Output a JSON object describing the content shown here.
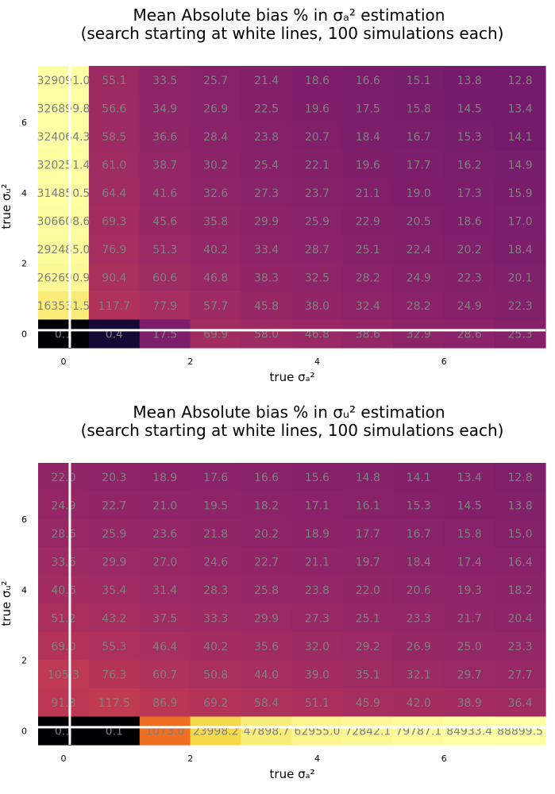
{
  "chart_data": [
    {
      "type": "heatmap",
      "title_line1": "Mean Absolute bias % in σₐ² estimation",
      "title_line2": "(search starting at white lines, 100 simulations each)",
      "xlabel": "true σₐ²",
      "ylabel": "true σᵤ²",
      "x_ticks": [
        "0",
        "2",
        "4",
        "6"
      ],
      "y_ticks": [
        "0",
        "2",
        "4",
        "6"
      ],
      "xlim": [
        -0.4,
        7.6
      ],
      "ylim": [
        -0.4,
        7.6
      ],
      "x_values": [
        0,
        1,
        2,
        3,
        4,
        5,
        6,
        7,
        8,
        9
      ],
      "y_values": [
        0,
        1,
        2,
        3,
        4,
        5,
        6,
        7,
        8,
        9
      ],
      "white_lines": {
        "x": 0.1,
        "y": 0.1
      },
      "colormap": "inferno",
      "grid": false,
      "rows_top_to_bottom": [
        [
          "329091.0",
          "55.1",
          "33.5",
          "25.7",
          "21.4",
          "18.6",
          "16.6",
          "15.1",
          "13.8",
          "12.8"
        ],
        [
          "326899.8",
          "56.6",
          "34.9",
          "26.9",
          "22.5",
          "19.6",
          "17.5",
          "15.8",
          "14.5",
          "13.4"
        ],
        [
          "324064.3",
          "58.5",
          "36.6",
          "28.4",
          "23.8",
          "20.7",
          "18.4",
          "16.7",
          "15.3",
          "14.1"
        ],
        [
          "320251.4",
          "61.0",
          "38.7",
          "30.2",
          "25.4",
          "22.1",
          "19.6",
          "17.7",
          "16.2",
          "14.9"
        ],
        [
          "314850.5",
          "64.4",
          "41.6",
          "32.6",
          "27.3",
          "23.7",
          "21.1",
          "19.0",
          "17.3",
          "15.9"
        ],
        [
          "306608.6",
          "69.3",
          "45.6",
          "35.8",
          "29.9",
          "25.9",
          "22.9",
          "20.5",
          "18.6",
          "17.0"
        ],
        [
          "292485.0",
          "76.9",
          "51.3",
          "40.2",
          "33.4",
          "28.7",
          "25.1",
          "22.4",
          "20.2",
          "18.4"
        ],
        [
          "262690.9",
          "90.4",
          "60.6",
          "46.8",
          "38.3",
          "32.5",
          "28.2",
          "24.9",
          "22.3",
          "20.1"
        ],
        [
          "163531.5",
          "117.7",
          "77.9",
          "57.7",
          "45.8",
          "38.0",
          "32.4",
          "28.2",
          "24.9",
          "22.3"
        ],
        [
          "0.1",
          "0.4",
          "17.5",
          "69.9",
          "58.0",
          "46.8",
          "38.6",
          "32.9",
          "28.6",
          "25.3"
        ]
      ]
    },
    {
      "type": "heatmap",
      "title_line1": "Mean Absolute bias % in σᵤ² estimation",
      "title_line2": "(search starting at white lines, 100 simulations each)",
      "xlabel": "true σₐ²",
      "ylabel": "true σᵤ²",
      "x_ticks": [
        "0",
        "2",
        "4",
        "6"
      ],
      "y_ticks": [
        "0",
        "2",
        "4",
        "6"
      ],
      "xlim": [
        -0.4,
        7.6
      ],
      "ylim": [
        -0.4,
        7.6
      ],
      "x_values": [
        0,
        1,
        2,
        3,
        4,
        5,
        6,
        7,
        8,
        9
      ],
      "y_values": [
        0,
        1,
        2,
        3,
        4,
        5,
        6,
        7,
        8,
        9
      ],
      "white_lines": {
        "x": 0.1,
        "y": 0.1
      },
      "colormap": "inferno",
      "grid": false,
      "rows_top_to_bottom": [
        [
          "22.0",
          "20.3",
          "18.9",
          "17.6",
          "16.6",
          "15.6",
          "14.8",
          "14.1",
          "13.4",
          "12.8"
        ],
        [
          "24.9",
          "22.7",
          "21.0",
          "19.5",
          "18.2",
          "17.1",
          "16.1",
          "15.3",
          "14.5",
          "13.8"
        ],
        [
          "28.6",
          "25.9",
          "23.6",
          "21.8",
          "20.2",
          "18.9",
          "17.7",
          "16.7",
          "15.8",
          "15.0"
        ],
        [
          "33.6",
          "29.9",
          "27.0",
          "24.6",
          "22.7",
          "21.1",
          "19.7",
          "18.4",
          "17.4",
          "16.4"
        ],
        [
          "40.6",
          "35.4",
          "31.4",
          "28.3",
          "25.8",
          "23.8",
          "22.0",
          "20.6",
          "19.3",
          "18.2"
        ],
        [
          "51.2",
          "43.2",
          "37.5",
          "33.3",
          "29.9",
          "27.3",
          "25.1",
          "23.3",
          "21.7",
          "20.4"
        ],
        [
          "69.0",
          "55.3",
          "46.4",
          "40.2",
          "35.6",
          "32.0",
          "29.2",
          "26.9",
          "25.0",
          "23.3"
        ],
        [
          "105.3",
          "76.3",
          "60.7",
          "50.8",
          "44.0",
          "39.0",
          "35.1",
          "32.1",
          "29.7",
          "27.7"
        ],
        [
          "91.8",
          "117.5",
          "86.9",
          "69.2",
          "58.4",
          "51.1",
          "45.9",
          "42.0",
          "38.9",
          "36.4"
        ],
        [
          "0.1",
          "0.1",
          "1073.0",
          "23998.2",
          "47898.7",
          "62955.0",
          "72842.1",
          "79787.1",
          "84933.4",
          "88899.5"
        ]
      ]
    }
  ]
}
